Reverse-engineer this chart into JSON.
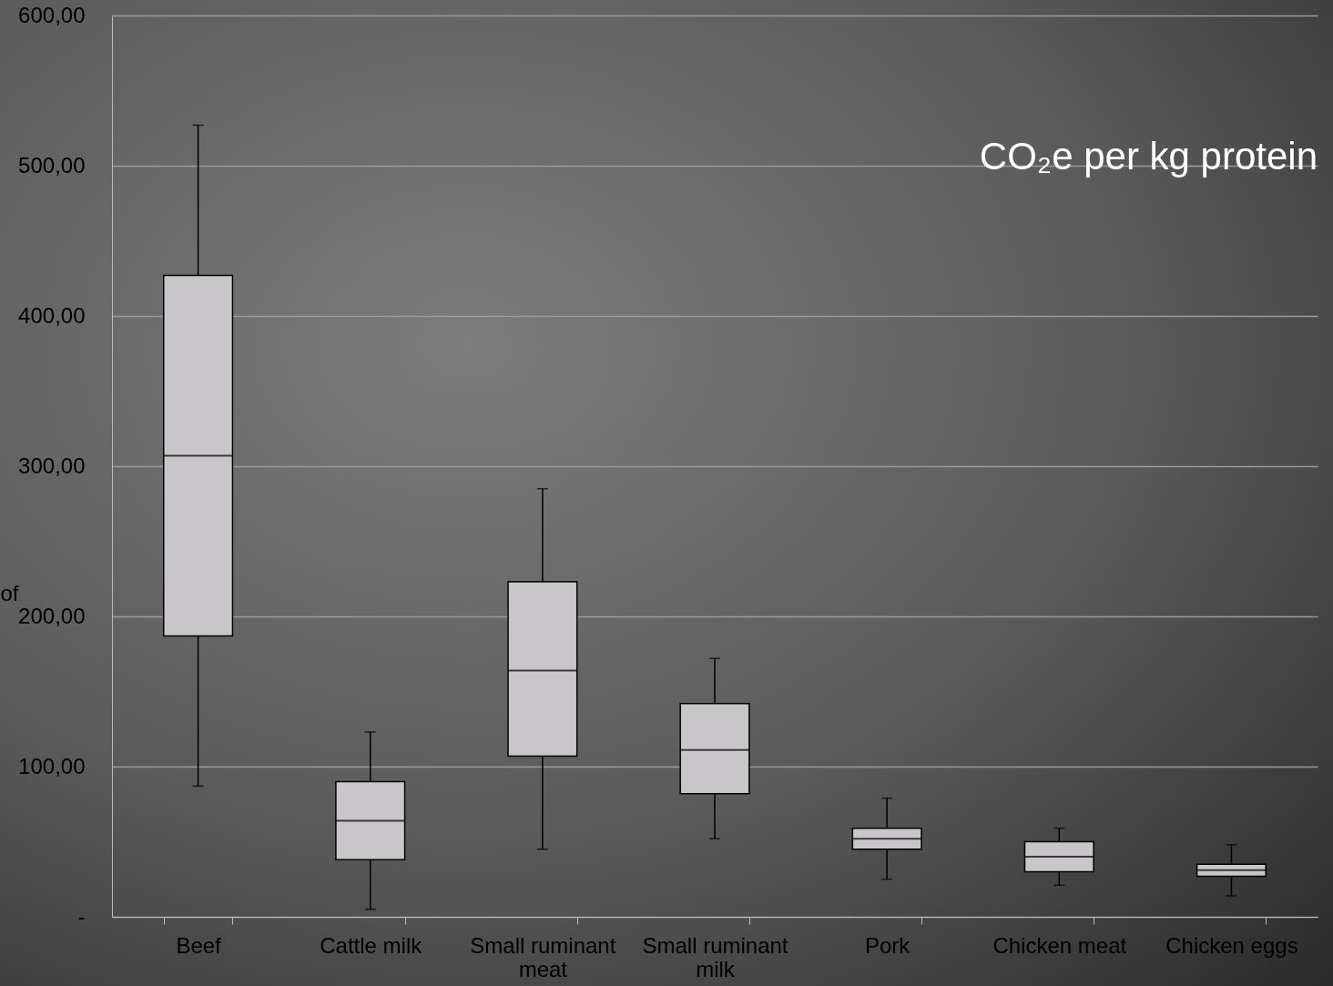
{
  "chart_data": {
    "type": "box",
    "title": "CO₂e per kg protein",
    "ylabel": "of",
    "categories": [
      "Beef",
      "Cattle milk",
      "Small ruminant meat",
      "Small ruminant milk",
      "Pork",
      "Chicken meat",
      "Chicken eggs"
    ],
    "boxes": [
      {
        "low": 87,
        "q1": 187,
        "median": 307,
        "q3": 427,
        "high": 527
      },
      {
        "low": 5,
        "q1": 38,
        "median": 64,
        "q3": 90,
        "high": 123
      },
      {
        "low": 45,
        "q1": 107,
        "median": 164,
        "q3": 223,
        "high": 285
      },
      {
        "low": 52,
        "q1": 82,
        "median": 111,
        "q3": 142,
        "high": 172
      },
      {
        "low": 25,
        "q1": 45,
        "median": 52,
        "q3": 59,
        "high": 79
      },
      {
        "low": 21,
        "q1": 30,
        "median": 40,
        "q3": 50,
        "high": 59
      },
      {
        "low": 14,
        "q1": 27,
        "median": 31,
        "q3": 35,
        "high": 48
      }
    ],
    "color": "#c8c6c8",
    "ylim": [
      0,
      600
    ],
    "yticks": [
      {
        "value": 0,
        "label": "-"
      },
      {
        "value": 100,
        "label": "100,00"
      },
      {
        "value": 200,
        "label": "200,00"
      },
      {
        "value": 300,
        "label": "300,00"
      },
      {
        "value": 400,
        "label": "400,00"
      },
      {
        "value": 500,
        "label": "500,00"
      },
      {
        "value": 600,
        "label": "600,00"
      }
    ],
    "grid": "y"
  }
}
